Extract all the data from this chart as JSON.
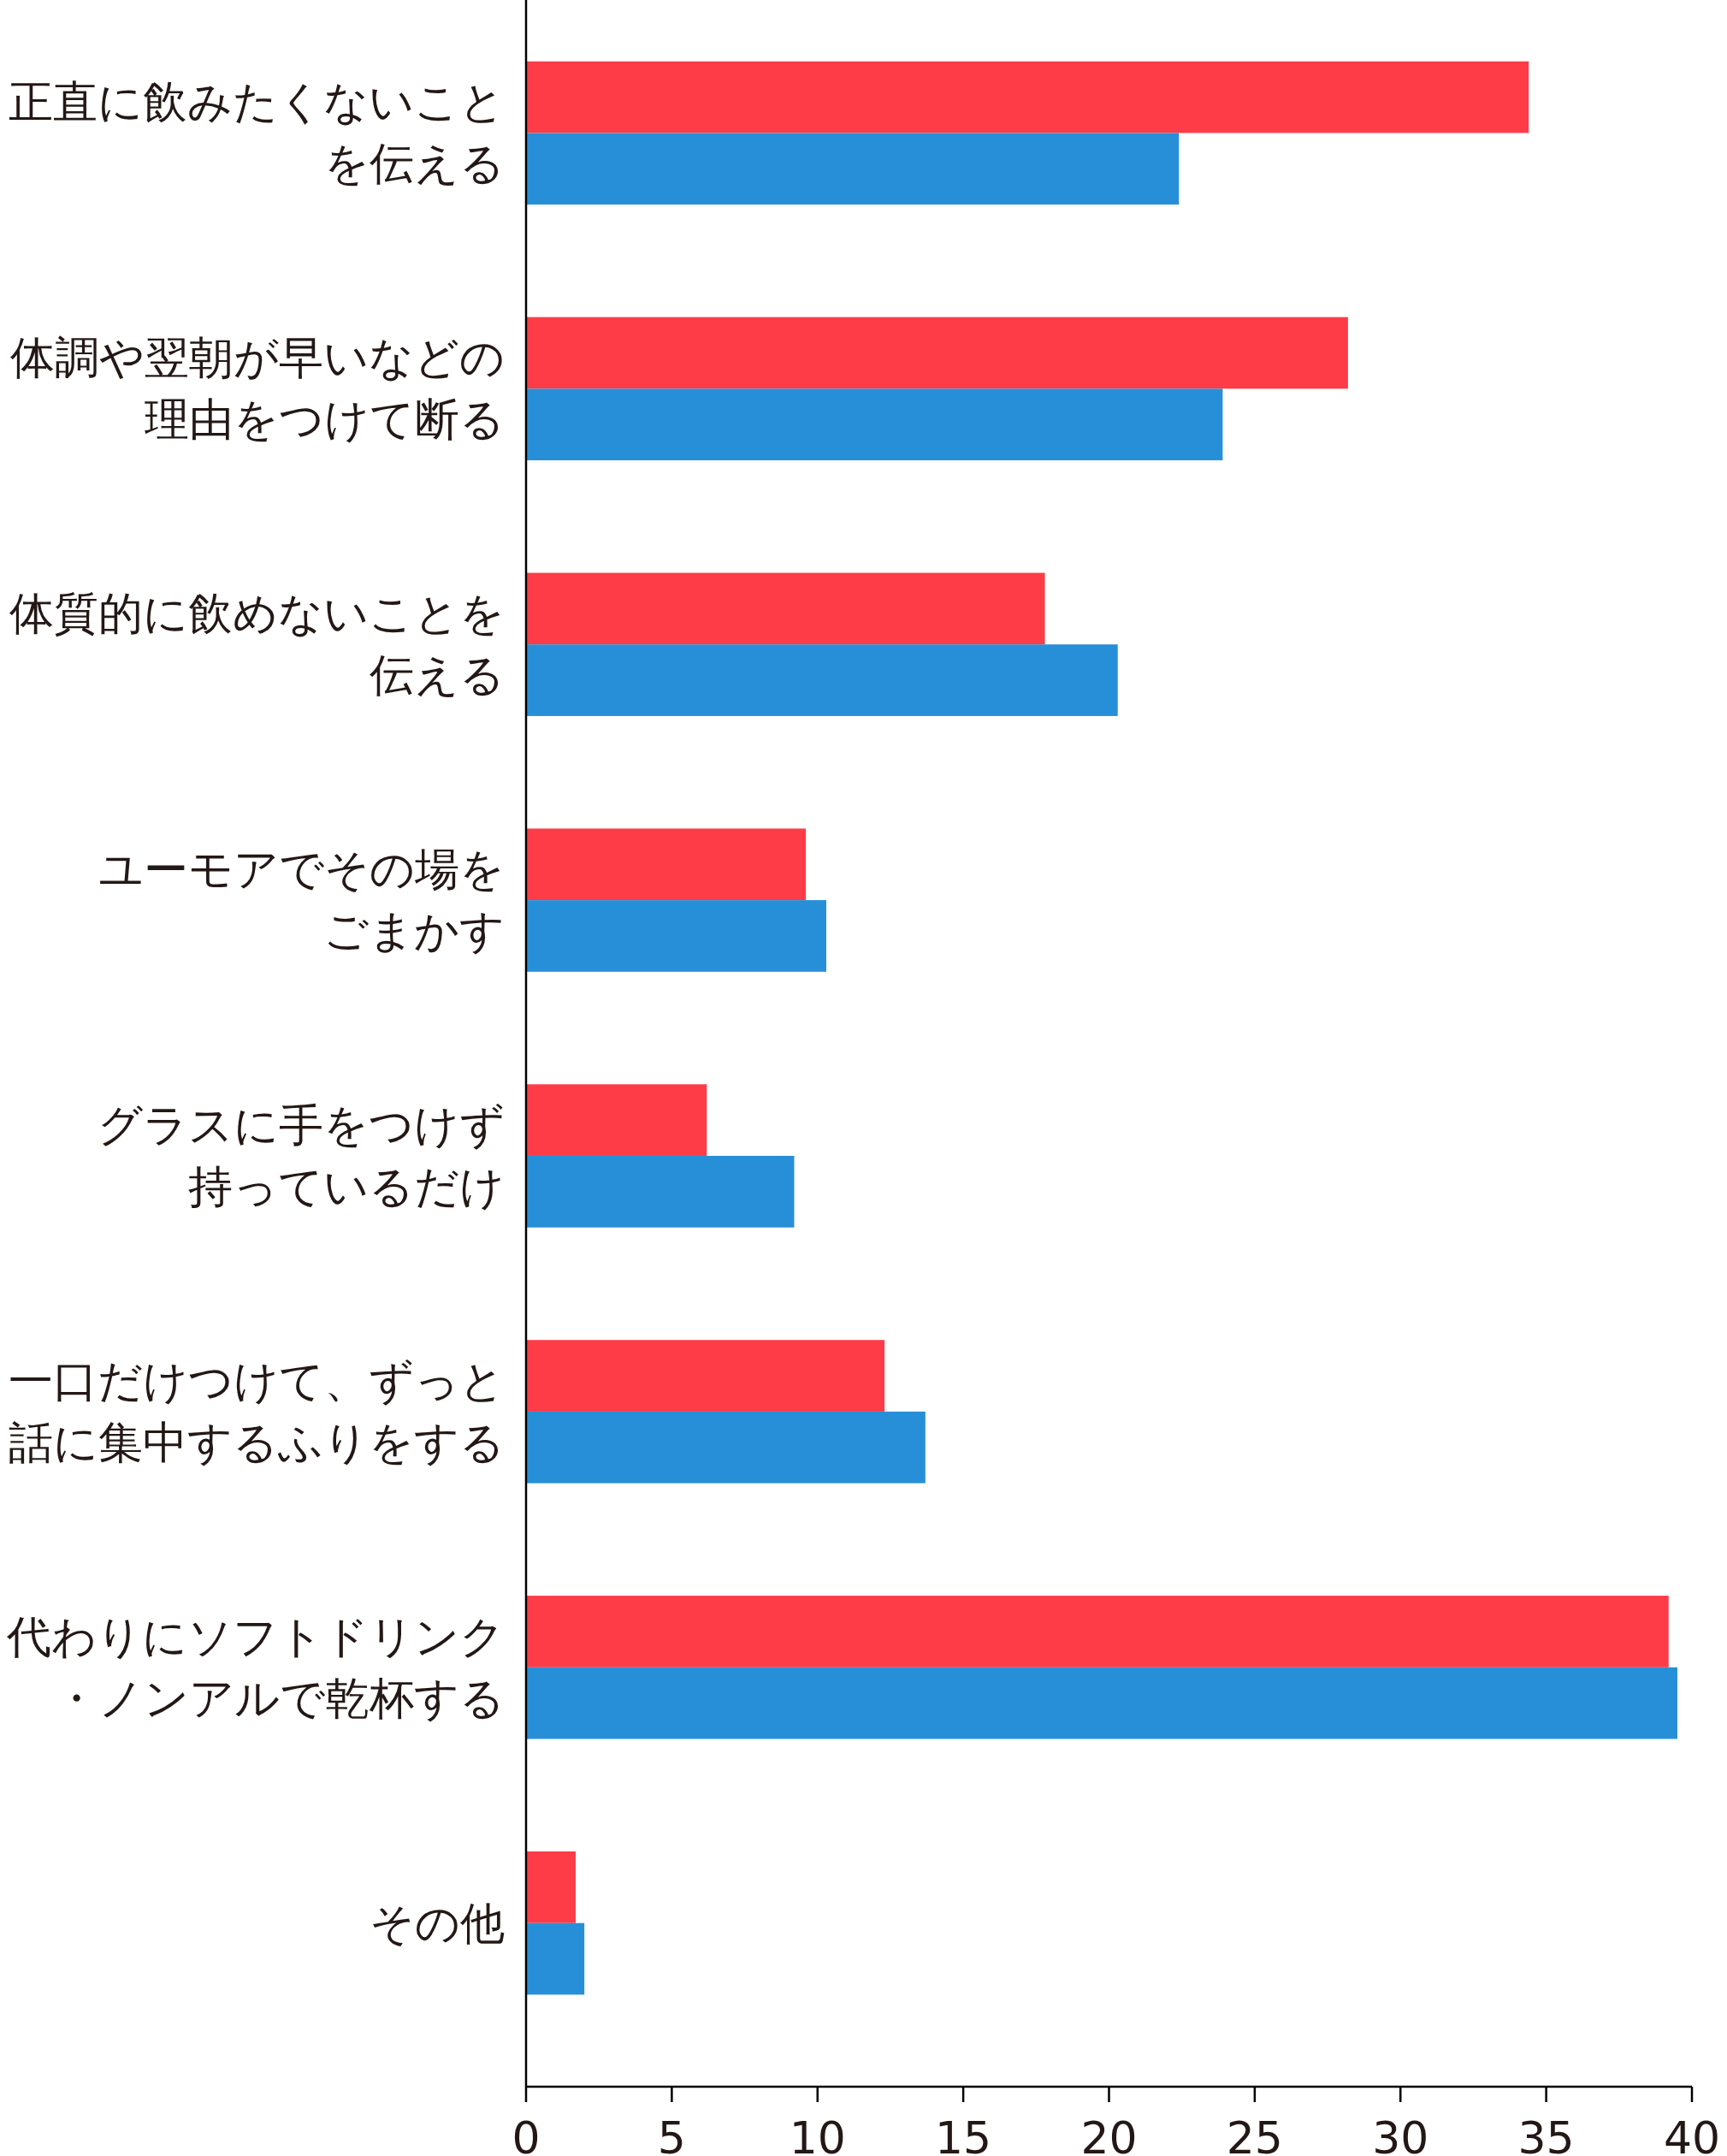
{
  "chart_data": {
    "type": "bar",
    "orientation": "horizontal",
    "categories": [
      "正直に飲みたくないことを伝える",
      "体調や翌朝が早いなどの理由をつけて断る",
      "体質的に飲めないことを伝える",
      "ユーモアでその場をごまかす",
      "グラスに手をつけず持っているだけ",
      "一口だけつけて、ずっと話に集中するふりをする",
      "代わりにソフトドリンク・ノンアルで乾杯する",
      "その他"
    ],
    "series": [
      {
        "color": "#fe3c48",
        "values": [
          34.4,
          28.2,
          17.8,
          9.6,
          6.2,
          12.3,
          39.2,
          1.7
        ]
      },
      {
        "color": "#278fd8",
        "values": [
          22.4,
          23.9,
          20.3,
          10.3,
          9.2,
          13.7,
          39.5,
          2.0
        ]
      }
    ],
    "xlim": [
      0,
      40
    ],
    "xticks": [
      0,
      5,
      10,
      15,
      20,
      25,
      30,
      35,
      40
    ]
  }
}
